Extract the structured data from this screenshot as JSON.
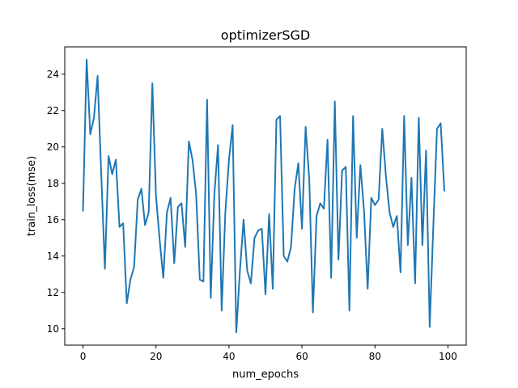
{
  "chart_data": {
    "type": "line",
    "title": "optimizerSGD",
    "xlabel": "num_epochs",
    "ylabel": "train_loss(mse)",
    "xlim": [
      -5,
      105
    ],
    "ylim": [
      9.1,
      25.5
    ],
    "xticks": [
      0,
      20,
      40,
      60,
      80,
      100
    ],
    "yticks": [
      10,
      12,
      14,
      16,
      18,
      20,
      22,
      24
    ],
    "grid": false,
    "series": [
      {
        "color": "#1f77b4",
        "x": [
          0,
          1,
          2,
          3,
          4,
          5,
          6,
          7,
          8,
          9,
          10,
          11,
          12,
          13,
          14,
          15,
          16,
          17,
          18,
          19,
          20,
          21,
          22,
          23,
          24,
          25,
          26,
          27,
          28,
          29,
          30,
          31,
          32,
          33,
          34,
          35,
          36,
          37,
          38,
          39,
          40,
          41,
          42,
          43,
          44,
          45,
          46,
          47,
          48,
          49,
          50,
          51,
          52,
          53,
          54,
          55,
          56,
          57,
          58,
          59,
          60,
          61,
          62,
          63,
          64,
          65,
          66,
          67,
          68,
          69,
          70,
          71,
          72,
          73,
          74,
          75,
          76,
          77,
          78,
          79,
          80,
          81,
          82,
          83,
          84,
          85,
          86,
          87,
          88,
          89,
          90,
          91,
          92,
          93,
          94,
          95,
          96,
          97,
          98,
          99
        ],
        "y": [
          16.5,
          24.8,
          20.7,
          21.6,
          23.9,
          18.5,
          13.3,
          19.5,
          18.5,
          19.3,
          15.6,
          15.8,
          11.4,
          12.7,
          13.4,
          17.1,
          17.7,
          15.7,
          16.4,
          23.5,
          17.3,
          14.9,
          12.8,
          16.4,
          17.2,
          13.6,
          16.7,
          16.9,
          14.5,
          20.3,
          19.3,
          17.4,
          12.7,
          12.6,
          22.6,
          11.7,
          17.4,
          20.1,
          11.0,
          16.4,
          19.3,
          21.2,
          9.8,
          13.2,
          16.0,
          13.2,
          12.5,
          15.0,
          15.4,
          15.5,
          11.9,
          16.3,
          12.2,
          21.5,
          21.7,
          14.0,
          13.7,
          14.5,
          17.7,
          19.1,
          15.5,
          21.1,
          18.2,
          10.9,
          16.2,
          16.9,
          16.6,
          20.4,
          12.8,
          22.5,
          13.8,
          18.7,
          18.9,
          11.0,
          21.7,
          15.0,
          19.0,
          16.5,
          12.2,
          17.2,
          16.8,
          17.1,
          21.0,
          18.4,
          16.4,
          15.6,
          16.2,
          13.1,
          21.7,
          14.6,
          18.3,
          12.5,
          21.6,
          14.6,
          19.8,
          10.1,
          15.7,
          21.0,
          21.3,
          17.6
        ]
      }
    ]
  }
}
